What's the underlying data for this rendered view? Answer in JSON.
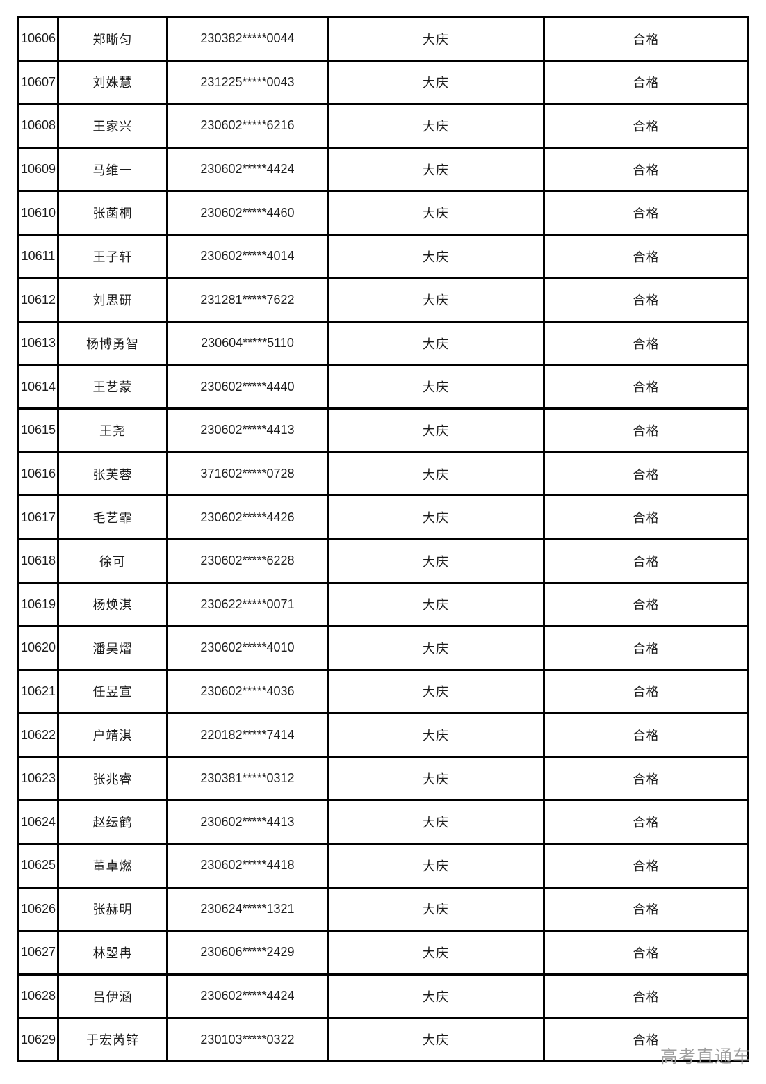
{
  "table": {
    "border_color": "#000000",
    "text_color": "#1c1c1c",
    "columns": [
      "no",
      "name",
      "id",
      "city",
      "result"
    ],
    "rows": [
      {
        "no": "10606",
        "name": "郑晰匀",
        "id": "230382*****0044",
        "city": "大庆",
        "result": "合格"
      },
      {
        "no": "10607",
        "name": "刘姝慧",
        "id": "231225*****0043",
        "city": "大庆",
        "result": "合格"
      },
      {
        "no": "10608",
        "name": "王家兴",
        "id": "230602*****6216",
        "city": "大庆",
        "result": "合格"
      },
      {
        "no": "10609",
        "name": "马维一",
        "id": "230602*****4424",
        "city": "大庆",
        "result": "合格"
      },
      {
        "no": "10610",
        "name": "张菡桐",
        "id": "230602*****4460",
        "city": "大庆",
        "result": "合格"
      },
      {
        "no": "10611",
        "name": "王子轩",
        "id": "230602*****4014",
        "city": "大庆",
        "result": "合格"
      },
      {
        "no": "10612",
        "name": "刘思研",
        "id": "231281*****7622",
        "city": "大庆",
        "result": "合格"
      },
      {
        "no": "10613",
        "name": "杨博勇智",
        "id": "230604*****5110",
        "city": "大庆",
        "result": "合格"
      },
      {
        "no": "10614",
        "name": "王艺蒙",
        "id": "230602*****4440",
        "city": "大庆",
        "result": "合格"
      },
      {
        "no": "10615",
        "name": "王尧",
        "id": "230602*****4413",
        "city": "大庆",
        "result": "合格"
      },
      {
        "no": "10616",
        "name": "张芙蓉",
        "id": "371602*****0728",
        "city": "大庆",
        "result": "合格"
      },
      {
        "no": "10617",
        "name": "毛艺霏",
        "id": "230602*****4426",
        "city": "大庆",
        "result": "合格"
      },
      {
        "no": "10618",
        "name": "徐可",
        "id": "230602*****6228",
        "city": "大庆",
        "result": "合格"
      },
      {
        "no": "10619",
        "name": "杨焕淇",
        "id": "230622*****0071",
        "city": "大庆",
        "result": "合格"
      },
      {
        "no": "10620",
        "name": "潘昊熠",
        "id": "230602*****4010",
        "city": "大庆",
        "result": "合格"
      },
      {
        "no": "10621",
        "name": "任昱宣",
        "id": "230602*****4036",
        "city": "大庆",
        "result": "合格"
      },
      {
        "no": "10622",
        "name": "户靖淇",
        "id": "220182*****7414",
        "city": "大庆",
        "result": "合格"
      },
      {
        "no": "10623",
        "name": "张兆睿",
        "id": "230381*****0312",
        "city": "大庆",
        "result": "合格"
      },
      {
        "no": "10624",
        "name": "赵纭鹤",
        "id": "230602*****4413",
        "city": "大庆",
        "result": "合格"
      },
      {
        "no": "10625",
        "name": "董卓燃",
        "id": "230602*****4418",
        "city": "大庆",
        "result": "合格"
      },
      {
        "no": "10626",
        "name": "张赫明",
        "id": "230624*****1321",
        "city": "大庆",
        "result": "合格"
      },
      {
        "no": "10627",
        "name": "林曌冉",
        "id": "230606*****2429",
        "city": "大庆",
        "result": "合格"
      },
      {
        "no": "10628",
        "name": "吕伊涵",
        "id": "230602*****4424",
        "city": "大庆",
        "result": "合格"
      },
      {
        "no": "10629",
        "name": "于宏芮锌",
        "id": "230103*****0322",
        "city": "大庆",
        "result": "合格"
      }
    ]
  },
  "watermark": {
    "text": "高考直通车",
    "color": "#9e9e9e"
  }
}
